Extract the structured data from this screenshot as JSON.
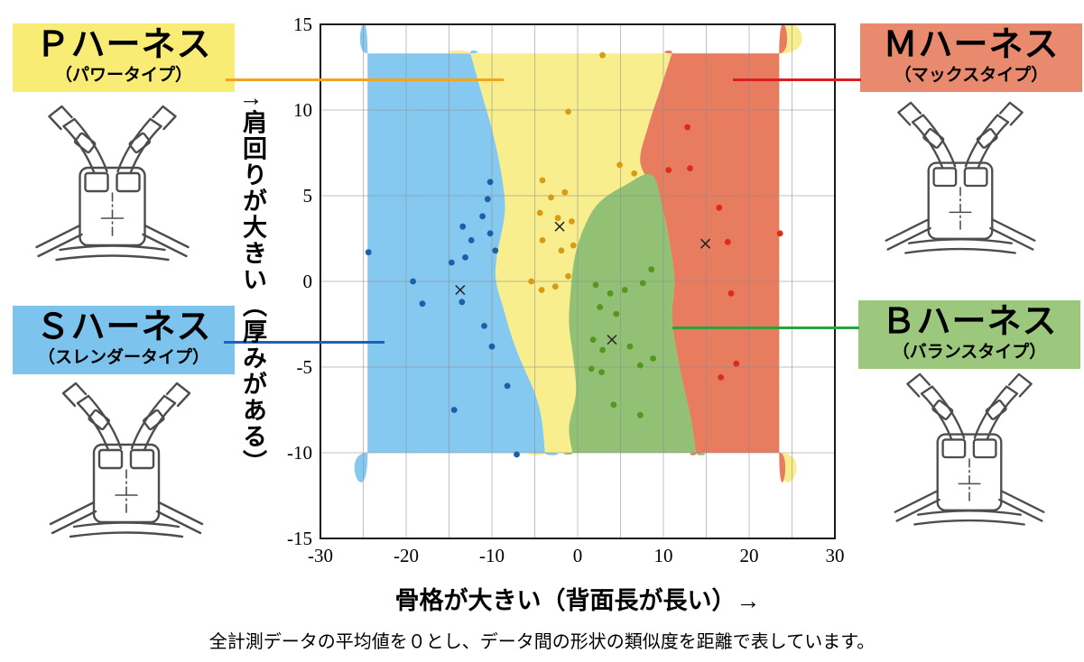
{
  "page": {
    "caption": "全計測データの平均値を０とし、データ間の形状の類似度を距離で表しています。"
  },
  "labels": {
    "p": {
      "title": "Ｐハーネス",
      "subtitle": "（パワータイプ）",
      "bg": "#f9ec75",
      "line_color": "#f2a41e"
    },
    "m": {
      "title": "Ｍハーネス",
      "subtitle": "（マックスタイプ）",
      "bg": "#e98a6e",
      "line_color": "#dc1e1e"
    },
    "s": {
      "title": "Ｓハーネス",
      "subtitle": "（スレンダータイプ）",
      "bg": "#7cc3ee",
      "line_color": "#1c62b8"
    },
    "b": {
      "title": "Ｂハーネス",
      "subtitle": "（バランスタイプ）",
      "bg": "#9cc87d",
      "line_color": "#2aa23d"
    }
  },
  "chart_data": {
    "type": "scatter",
    "title": "",
    "xlabel": "骨格が大きい（背面長が長い）→",
    "ylabel": "↑肩回りが大きい（厚みがある）",
    "xlim": [
      -30,
      30
    ],
    "ylim": [
      -15,
      15
    ],
    "xticks": [
      -30,
      -20,
      -10,
      0,
      10,
      20,
      30
    ],
    "yticks": [
      -15,
      -10,
      -5,
      0,
      5,
      10,
      15
    ],
    "grid": true,
    "grid_step": 5,
    "legend_position": "none",
    "regions": [
      {
        "name": "S-slender",
        "color": "#85c8f0",
        "points": [
          [
            -24.5,
            13.3
          ],
          [
            -24.5,
            13.3
          ],
          [
            -12.5,
            13.3
          ],
          [
            -12.5,
            13.3
          ],
          [
            -11.2,
            11
          ],
          [
            -9.8,
            8.5
          ],
          [
            -8.8,
            6
          ],
          [
            -8.5,
            4
          ],
          [
            -9.4,
            1.5
          ],
          [
            -9.5,
            0
          ],
          [
            -8.7,
            -1.5
          ],
          [
            -7.5,
            -3.5
          ],
          [
            -6.3,
            -5
          ],
          [
            -5,
            -6.5
          ],
          [
            -4.2,
            -8
          ],
          [
            -3.8,
            -10
          ],
          [
            -3.8,
            -10
          ],
          [
            -24.5,
            -10
          ],
          [
            -24.5,
            -10
          ]
        ]
      },
      {
        "name": "P-power",
        "color": "#f8ee8e",
        "points": [
          [
            -12.5,
            13.3
          ],
          [
            -12.5,
            13.3
          ],
          [
            23.5,
            13.3
          ],
          [
            23.5,
            13.3
          ],
          [
            23.5,
            -10
          ],
          [
            23.5,
            -10
          ],
          [
            -3.8,
            -10
          ],
          [
            -3.8,
            -10
          ],
          [
            -4.2,
            -8
          ],
          [
            -5,
            -6.5
          ],
          [
            -6.3,
            -5
          ],
          [
            -7.5,
            -3.5
          ],
          [
            -8.7,
            -1.5
          ],
          [
            -9.5,
            0
          ],
          [
            -9.4,
            1.5
          ],
          [
            -8.5,
            4
          ],
          [
            -8.8,
            6
          ],
          [
            -9.8,
            8.5
          ],
          [
            -11.2,
            11
          ]
        ]
      },
      {
        "name": "M-max",
        "color": "#e87c5f",
        "points": [
          [
            11,
            13.3
          ],
          [
            11,
            13.3
          ],
          [
            23.5,
            13.3
          ],
          [
            23.5,
            13.3
          ],
          [
            23.5,
            -10
          ],
          [
            23.5,
            -10
          ],
          [
            13.8,
            -10
          ],
          [
            13.8,
            -10
          ],
          [
            13.2,
            -8
          ],
          [
            12.3,
            -6
          ],
          [
            11.5,
            -4
          ],
          [
            11,
            -2
          ],
          [
            11.3,
            0
          ],
          [
            10.8,
            2
          ],
          [
            10,
            4
          ],
          [
            8.8,
            5.4
          ],
          [
            7.3,
            7
          ],
          [
            8.2,
            9
          ],
          [
            9.5,
            11
          ]
        ]
      },
      {
        "name": "B-balance",
        "color": "#92c075",
        "points": [
          [
            8.7,
            6.2
          ],
          [
            5.5,
            5.6
          ],
          [
            2.5,
            4.6
          ],
          [
            0.8,
            3.2
          ],
          [
            -0.3,
            1.5
          ],
          [
            -0.8,
            -0.5
          ],
          [
            -1,
            -2.5
          ],
          [
            -0.5,
            -4.5
          ],
          [
            -0.2,
            -6.5
          ],
          [
            -1,
            -8.5
          ],
          [
            -0.6,
            -10
          ],
          [
            -0.6,
            -10
          ],
          [
            13.8,
            -10
          ],
          [
            13.8,
            -10
          ],
          [
            13.2,
            -8
          ],
          [
            12.3,
            -6
          ],
          [
            11.5,
            -4
          ],
          [
            11,
            -2
          ],
          [
            11.3,
            0
          ],
          [
            10.8,
            2
          ],
          [
            10,
            4
          ]
        ]
      }
    ],
    "series": [
      {
        "id": "s",
        "name": "Ｓハーネス（スレンダータイプ）",
        "color": "#1a60a8",
        "center": [
          -13.7,
          -0.5
        ],
        "points": [
          [
            -24.4,
            1.7
          ],
          [
            -19.2,
            0.0
          ],
          [
            -18.1,
            -1.3
          ],
          [
            -14.7,
            1.1
          ],
          [
            -13.4,
            3.2
          ],
          [
            -12.4,
            2.4
          ],
          [
            -13.1,
            1.4
          ],
          [
            -11.1,
            3.8
          ],
          [
            -10.5,
            4.8
          ],
          [
            -10.2,
            5.8
          ],
          [
            -10.2,
            2.8
          ],
          [
            -9.6,
            1.8
          ],
          [
            -13.5,
            -1.2
          ],
          [
            -10.9,
            -2.6
          ],
          [
            -10.0,
            -3.8
          ],
          [
            -14.4,
            -7.5
          ],
          [
            -8.2,
            -6.1
          ],
          [
            -7.1,
            -10.1
          ]
        ]
      },
      {
        "id": "p",
        "name": "Ｐハーネス（パワータイプ）",
        "color": "#d79c15",
        "center": [
          -2.1,
          3.2
        ],
        "points": [
          [
            2.9,
            13.2
          ],
          [
            -1.1,
            9.9
          ],
          [
            -4.1,
            5.9
          ],
          [
            -3.1,
            4.9
          ],
          [
            -1.5,
            5.2
          ],
          [
            -4.4,
            4.0
          ],
          [
            -2.3,
            3.7
          ],
          [
            -0.7,
            3.5
          ],
          [
            -4.1,
            2.4
          ],
          [
            -1.9,
            1.8
          ],
          [
            -0.5,
            2.1
          ],
          [
            -5.4,
            0.0
          ],
          [
            -4.2,
            -0.5
          ],
          [
            -2.6,
            -0.3
          ],
          [
            -1.1,
            0.3
          ],
          [
            4.9,
            6.8
          ],
          [
            6.6,
            6.3
          ]
        ]
      },
      {
        "id": "b",
        "name": "Ｂハーネス（バランスタイプ）",
        "color": "#55961f",
        "center": [
          4.0,
          -3.4
        ],
        "points": [
          [
            2.1,
            -0.2
          ],
          [
            3.8,
            -0.7
          ],
          [
            5.5,
            -0.5
          ],
          [
            7.6,
            -0.1
          ],
          [
            8.6,
            0.7
          ],
          [
            2.6,
            -1.5
          ],
          [
            4.5,
            -1.9
          ],
          [
            1.8,
            -3.4
          ],
          [
            2.9,
            -4.0
          ],
          [
            6.1,
            -3.8
          ],
          [
            1.6,
            -5.1
          ],
          [
            2.8,
            -5.3
          ],
          [
            7.3,
            -4.9
          ],
          [
            8.8,
            -4.5
          ],
          [
            4.2,
            -7.2
          ],
          [
            7.3,
            -7.8
          ]
        ]
      },
      {
        "id": "m",
        "name": "Ｍハーネス（マックスタイプ）",
        "color": "#dc2b1b",
        "center": [
          14.9,
          2.2
        ],
        "points": [
          [
            12.8,
            9.0
          ],
          [
            10.6,
            6.5
          ],
          [
            13.1,
            6.6
          ],
          [
            16.5,
            4.3
          ],
          [
            17.5,
            2.3
          ],
          [
            23.6,
            2.8
          ],
          [
            17.9,
            -0.7
          ],
          [
            18.5,
            -4.8
          ],
          [
            16.7,
            -5.6
          ]
        ]
      }
    ]
  }
}
